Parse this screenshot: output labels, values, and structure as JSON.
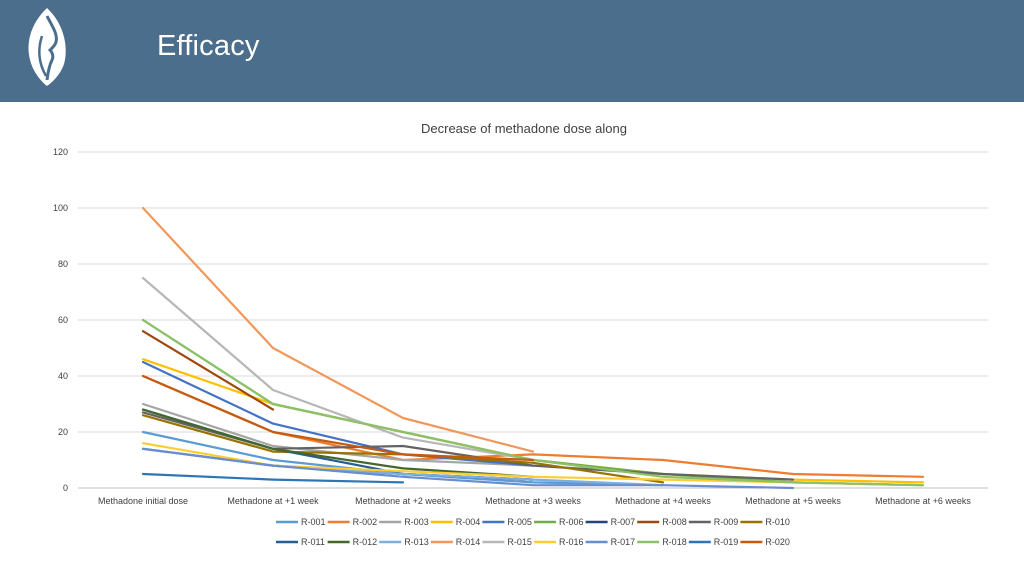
{
  "header": {
    "title": "Efficacy",
    "logo_icon": "leaf-face-logo-icon"
  },
  "colors": {
    "header_bg": "#4b6e8c",
    "grid": "#d9d9d9",
    "axis": "#bfbfbf"
  },
  "chart_data": {
    "type": "line",
    "title": "Decrease of methadone dose along",
    "xlabel": "",
    "ylabel": "",
    "ylim": [
      0,
      120
    ],
    "yticks": [
      0,
      20,
      40,
      60,
      80,
      100,
      120
    ],
    "grid": true,
    "legend_position": "bottom",
    "categories": [
      "Methadone initial dose",
      "Methadone at +1 week",
      "Methadone at +2 weeks",
      "Methadone at +3 weeks",
      "Methadone at +4 weeks",
      "Methadone at +5 weeks",
      "Methadone at +6 weeks"
    ],
    "series": [
      {
        "name": "R-001",
        "color": "#5b9bd5",
        "values": [
          20,
          10,
          5,
          2,
          1,
          null,
          null
        ]
      },
      {
        "name": "R-002",
        "color": "#ed7d31",
        "values": [
          40,
          20,
          10,
          12,
          10,
          5,
          4
        ]
      },
      {
        "name": "R-003",
        "color": "#a5a5a5",
        "values": [
          30,
          15,
          10,
          8,
          null,
          null,
          null
        ]
      },
      {
        "name": "R-004",
        "color": "#ffc000",
        "values": [
          46,
          30,
          20,
          10,
          5,
          3,
          2
        ]
      },
      {
        "name": "R-005",
        "color": "#4472c4",
        "values": [
          45,
          23,
          12,
          8,
          null,
          null,
          null
        ]
      },
      {
        "name": "R-006",
        "color": "#70ad47",
        "values": [
          60,
          30,
          20,
          10,
          5,
          2,
          1
        ]
      },
      {
        "name": "R-007",
        "color": "#264478",
        "values": [
          14,
          8,
          5,
          3,
          null,
          null,
          null
        ]
      },
      {
        "name": "R-008",
        "color": "#9e480e",
        "values": [
          56,
          28,
          null,
          null,
          null,
          null,
          null
        ]
      },
      {
        "name": "R-009",
        "color": "#636363",
        "values": [
          27,
          14,
          15,
          8,
          5,
          3,
          null
        ]
      },
      {
        "name": "R-010",
        "color": "#997300",
        "values": [
          26,
          13,
          12,
          9,
          2,
          null,
          null
        ]
      },
      {
        "name": "R-011",
        "color": "#255e91",
        "values": [
          28,
          14,
          5,
          3,
          null,
          null,
          null
        ]
      },
      {
        "name": "R-012",
        "color": "#43682b",
        "values": [
          28,
          14,
          7,
          4,
          null,
          null,
          null
        ]
      },
      {
        "name": "R-013",
        "color": "#7cafdd",
        "values": [
          14,
          8,
          5,
          3,
          1,
          null,
          null
        ]
      },
      {
        "name": "R-014",
        "color": "#f1975a",
        "values": [
          100,
          50,
          25,
          13,
          null,
          null,
          null
        ]
      },
      {
        "name": "R-015",
        "color": "#b7b7b7",
        "values": [
          75,
          35,
          18,
          10,
          null,
          null,
          null
        ]
      },
      {
        "name": "R-016",
        "color": "#ffcd33",
        "values": [
          16,
          8,
          6,
          4,
          3,
          2,
          1
        ]
      },
      {
        "name": "R-017",
        "color": "#698ed0",
        "values": [
          14,
          8,
          4,
          1,
          1,
          0,
          null
        ]
      },
      {
        "name": "R-018",
        "color": "#8cc168",
        "values": [
          60,
          30,
          20,
          10,
          4,
          2,
          1
        ]
      },
      {
        "name": "R-019",
        "color": "#2e75b6",
        "values": [
          5,
          3,
          2,
          null,
          null,
          null,
          null
        ]
      },
      {
        "name": "R-020",
        "color": "#c55a11",
        "values": [
          40,
          20,
          12,
          10,
          null,
          null,
          null
        ]
      }
    ]
  }
}
